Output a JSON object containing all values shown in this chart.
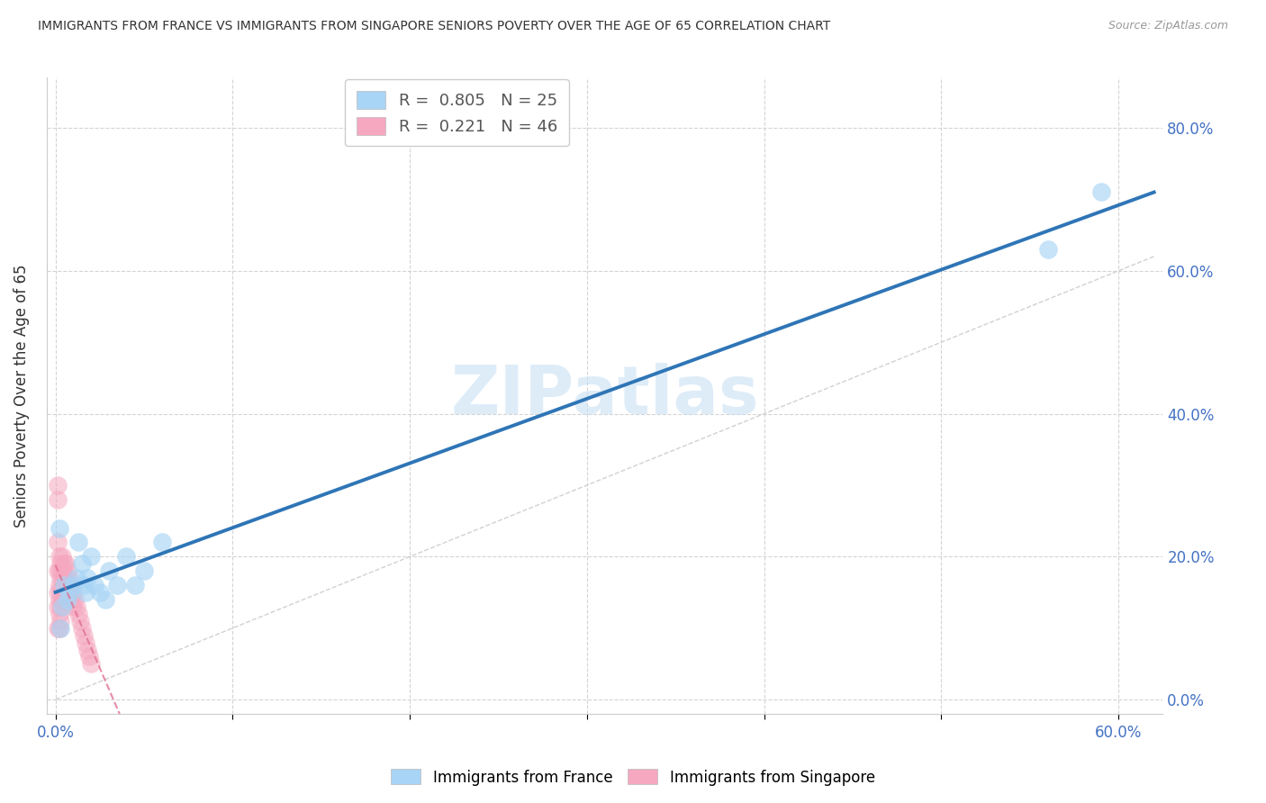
{
  "title": "IMMIGRANTS FROM FRANCE VS IMMIGRANTS FROM SINGAPORE SENIORS POVERTY OVER THE AGE OF 65 CORRELATION CHART",
  "source": "Source: ZipAtlas.com",
  "ylabel": "Seniors Poverty Over the Age of 65",
  "france_R": 0.805,
  "france_N": 25,
  "singapore_R": 0.221,
  "singapore_N": 46,
  "france_color": "#A8D4F5",
  "singapore_color": "#F5A8C0",
  "france_line_color": "#2E75B6",
  "singapore_line_color": "#E07090",
  "diagonal_color": "#CCCCCC",
  "watermark": "ZIPatlas",
  "france_x": [
    0.002,
    0.003,
    0.004,
    0.005,
    0.007,
    0.008,
    0.01,
    0.012,
    0.013,
    0.015,
    0.016,
    0.017,
    0.018,
    0.02,
    0.022,
    0.025,
    0.028,
    0.03,
    0.035,
    0.04,
    0.045,
    0.05,
    0.06,
    0.56,
    0.59
  ],
  "france_y": [
    0.24,
    0.1,
    0.13,
    0.16,
    0.14,
    0.15,
    0.16,
    0.17,
    0.22,
    0.19,
    0.16,
    0.15,
    0.17,
    0.2,
    0.16,
    0.15,
    0.14,
    0.18,
    0.16,
    0.2,
    0.16,
    0.18,
    0.22,
    0.63,
    0.71
  ],
  "singapore_x": [
    0.001,
    0.001,
    0.001,
    0.001,
    0.001,
    0.001,
    0.001,
    0.002,
    0.002,
    0.002,
    0.002,
    0.002,
    0.002,
    0.003,
    0.003,
    0.003,
    0.003,
    0.003,
    0.004,
    0.004,
    0.004,
    0.004,
    0.005,
    0.005,
    0.005,
    0.006,
    0.006,
    0.006,
    0.007,
    0.007,
    0.008,
    0.008,
    0.009,
    0.009,
    0.01,
    0.01,
    0.011,
    0.012,
    0.013,
    0.014,
    0.015,
    0.016,
    0.017,
    0.018,
    0.019,
    0.02
  ],
  "singapore_y": [
    0.3,
    0.28,
    0.22,
    0.18,
    0.15,
    0.13,
    0.1,
    0.2,
    0.18,
    0.16,
    0.14,
    0.12,
    0.1,
    0.19,
    0.17,
    0.15,
    0.13,
    0.11,
    0.2,
    0.18,
    0.16,
    0.14,
    0.19,
    0.17,
    0.15,
    0.19,
    0.17,
    0.15,
    0.18,
    0.15,
    0.17,
    0.15,
    0.16,
    0.14,
    0.15,
    0.13,
    0.14,
    0.13,
    0.12,
    0.11,
    0.1,
    0.09,
    0.08,
    0.07,
    0.06,
    0.05
  ],
  "xlim": [
    -0.005,
    0.625
  ],
  "ylim": [
    -0.02,
    0.87
  ],
  "background_color": "#ffffff",
  "grid_color": "#d0d0d0",
  "legend_france_label": "R =  0.805   N = 25",
  "legend_singapore_label": "R =  0.221   N = 46",
  "bottom_legend_france": "Immigrants from France",
  "bottom_legend_singapore": "Immigrants from Singapore"
}
